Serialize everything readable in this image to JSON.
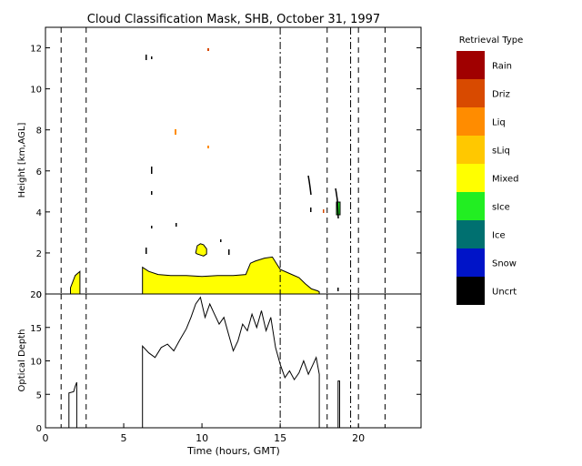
{
  "chart_data": [
    {
      "type": "area",
      "title": "Cloud Classification Mask, SHB, October 31, 1997",
      "xlabel": "",
      "ylabel": "Height [km,AGL]",
      "xlim": [
        0,
        24
      ],
      "ylim": [
        0,
        13
      ],
      "yticks": [
        "0",
        "2",
        "4",
        "6",
        "8",
        "10",
        "12"
      ],
      "dashed_vlines": [
        1.0,
        2.6,
        18.0,
        20.0,
        21.7
      ],
      "dashdot_vlines": [
        15.0,
        19.5
      ],
      "main_cloud": {
        "x": [
          6.2,
          6.2,
          6.6,
          7.2,
          8.0,
          9.0,
          10.0,
          11.0,
          12.0,
          12.8,
          13.1,
          13.4,
          14.0,
          14.5,
          15.0,
          15.6,
          16.2,
          16.6,
          17.0,
          17.4,
          17.5,
          17.5
        ],
        "top": [
          0,
          1.3,
          1.1,
          0.95,
          0.9,
          0.9,
          0.85,
          0.9,
          0.9,
          0.95,
          1.5,
          1.6,
          1.75,
          1.8,
          1.2,
          1.0,
          0.8,
          0.5,
          0.25,
          0.15,
          0.1,
          0
        ]
      },
      "first_cloud": {
        "x": [
          1.6,
          1.6,
          1.9,
          2.2,
          2.2
        ],
        "top": [
          0,
          0.3,
          0.9,
          1.1,
          0
        ]
      },
      "patch_cloud": {
        "x": [
          9.6,
          9.7,
          9.9,
          10.1,
          10.3,
          10.3,
          10.1,
          9.9,
          9.7
        ],
        "top": [
          2.0,
          2.35,
          2.45,
          2.4,
          2.2,
          1.95,
          1.85,
          1.9,
          1.95
        ]
      },
      "legend": {
        "title": "Retrieval Type",
        "items": [
          {
            "label": "Rain",
            "color": "#a00000"
          },
          {
            "label": "Driz",
            "color": "#d84a00"
          },
          {
            "label": "Liq",
            "color": "#ff8c00"
          },
          {
            "label": "sLiq",
            "color": "#ffc800"
          },
          {
            "label": "Mixed",
            "color": "#ffff00"
          },
          {
            "label": "sIce",
            "color": "#22ee22"
          },
          {
            "label": "Ice",
            "color": "#007070"
          },
          {
            "label": "Snow",
            "color": "#0014c8"
          },
          {
            "label": "Uncrt",
            "color": "#000000"
          }
        ]
      }
    },
    {
      "type": "line",
      "xlabel": "Time (hours, GMT)",
      "ylabel": "Optical Depth",
      "xlim": [
        0,
        24
      ],
      "ylim": [
        0,
        20
      ],
      "xticks": [
        "0",
        "5",
        "10",
        "15",
        "20"
      ],
      "yticks": [
        "0",
        "5",
        "10",
        "15",
        "20"
      ],
      "dashed_vlines": [
        1.0,
        2.6,
        18.0,
        20.0,
        21.7
      ],
      "dashdot_vlines": [
        15.0,
        19.5
      ],
      "series": [
        {
          "x": [
            1.5,
            1.5,
            1.8,
            1.9,
            2.0,
            2.0,
            6.2,
            6.2,
            6.6,
            7.0,
            7.4,
            7.8,
            8.2,
            8.6,
            9.0,
            9.3,
            9.6,
            9.9,
            10.2,
            10.5,
            10.8,
            11.1,
            11.4,
            11.7,
            12.0,
            12.3,
            12.6,
            12.9,
            13.2,
            13.5,
            13.8,
            14.1,
            14.4,
            14.7,
            15.0,
            15.3,
            15.6,
            15.9,
            16.2,
            16.5,
            16.8,
            17.1,
            17.3,
            17.5,
            17.5
          ],
          "y": [
            0,
            5.2,
            5.4,
            6.2,
            6.8,
            0,
            0,
            12.2,
            11.2,
            10.5,
            12.0,
            12.5,
            11.5,
            13.2,
            14.8,
            16.5,
            18.5,
            19.5,
            16.5,
            18.5,
            17.0,
            15.5,
            16.5,
            14.0,
            11.5,
            13.0,
            15.5,
            14.5,
            17.0,
            15.0,
            17.5,
            14.5,
            16.5,
            12.0,
            9.5,
            7.5,
            8.5,
            7.2,
            8.2,
            10.0,
            8.0,
            9.5,
            10.5,
            8.0,
            0
          ]
        },
        {
          "x": [
            18.7,
            18.7,
            18.8,
            18.8
          ],
          "y": [
            0,
            7.0,
            7.0,
            0
          ]
        }
      ]
    }
  ]
}
